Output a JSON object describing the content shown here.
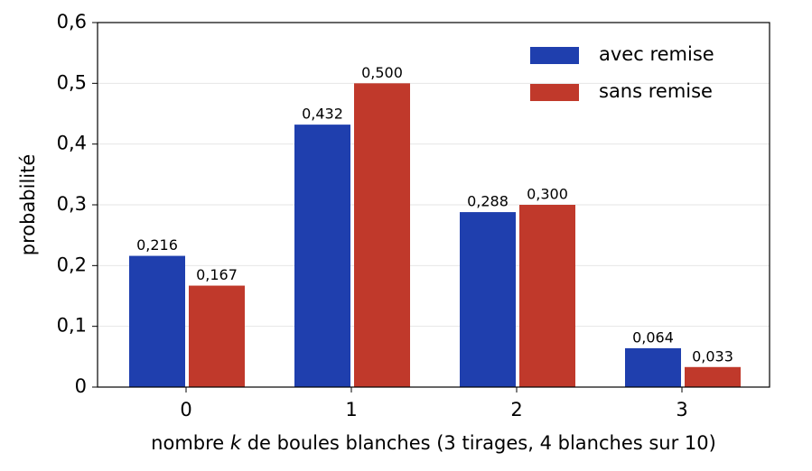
{
  "chart_data": {
    "type": "bar",
    "xlabel": [
      "nombre ",
      "k",
      " de boules blanches (3 tirages, 4 blanches sur 10)"
    ],
    "ylabel": "probabilité",
    "categories": [
      "0",
      "1",
      "2",
      "3"
    ],
    "series": [
      {
        "name": "avec remise",
        "color": "#1f3fae",
        "values": [
          0.216,
          0.432,
          0.288,
          0.064
        ],
        "value_labels": [
          "0,216",
          "0,432",
          "0,288",
          "0,064"
        ]
      },
      {
        "name": "sans remise",
        "color": "#c0392b",
        "values": [
          0.167,
          0.5,
          0.3,
          0.033
        ],
        "value_labels": [
          "0,167",
          "0,500",
          "0,300",
          "0,033"
        ]
      }
    ],
    "ylim": [
      0,
      0.6
    ],
    "yticks": [
      0,
      {
        "value": 0.1,
        "label": "0,1"
      },
      {
        "value": 0.2,
        "label": "0,2"
      },
      {
        "value": 0.3,
        "label": "0,3"
      },
      {
        "value": 0.4,
        "label": "0,4"
      },
      {
        "value": 0.5,
        "label": "0,5"
      },
      {
        "value": 0.6,
        "label": "0,6"
      }
    ],
    "grid": true,
    "legend": "upper right"
  }
}
